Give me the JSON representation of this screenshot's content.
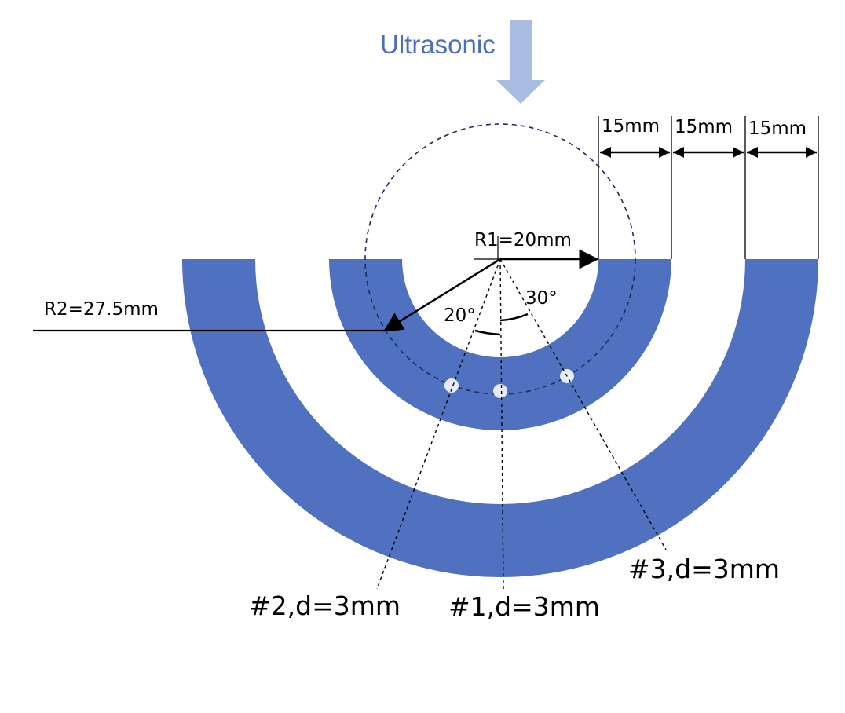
{
  "title": "Ultrasonic",
  "radius_labels": {
    "inner": "R1=20mm",
    "outer": "R2=27.5mm"
  },
  "width_labels": [
    "15mm",
    "15mm",
    "15mm"
  ],
  "angle_labels": {
    "left": "20°",
    "right": "30°"
  },
  "hole_labels": {
    "center": "#1,d=3mm",
    "left": "#2,d=3mm",
    "right": "#3,d=3mm"
  },
  "colors": {
    "ring": "#5071c0",
    "arrow": "#a9bde2",
    "title": "#4a6fbf",
    "dashed_circle": "#1f2d59",
    "hole": "#e8ecf5"
  }
}
